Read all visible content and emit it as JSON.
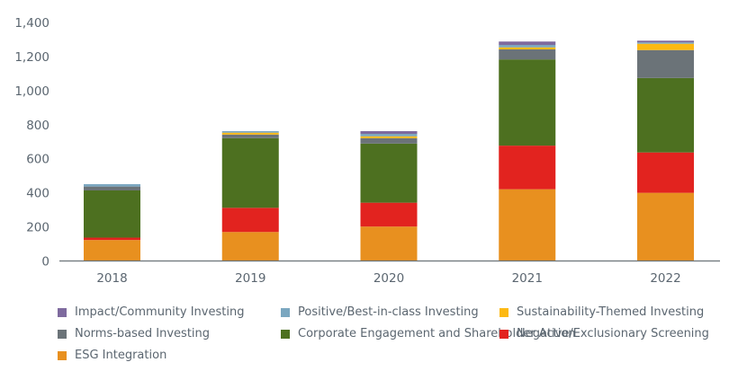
{
  "chart_data": {
    "type": "bar",
    "stacked": true,
    "title": "",
    "xlabel": "",
    "ylabel": "",
    "categories": [
      "2018",
      "2019",
      "2020",
      "2021",
      "2022"
    ],
    "ylim": [
      0,
      1400
    ],
    "yticks": [
      0,
      200,
      400,
      600,
      800,
      1000,
      1200,
      1400
    ],
    "ytick_labels": [
      "0",
      "200",
      "400",
      "600",
      "800",
      "1,000",
      "1,200",
      "1,400"
    ],
    "grid": false,
    "legend_position": "bottom",
    "series": [
      {
        "name": "ESG Integration",
        "color": "#E8901F",
        "values": [
          123,
          170,
          202,
          421,
          400
        ]
      },
      {
        "name": "Negative/Exclusionary Screening",
        "color": "#E2231F",
        "values": [
          14,
          142,
          140,
          256,
          237
        ]
      },
      {
        "name": "Corporate Engagement and Shareholder Action",
        "color": "#4D7020",
        "values": [
          277,
          409,
          347,
          506,
          437
        ]
      },
      {
        "name": "Norms-based Investing",
        "color": "#6B7378",
        "values": [
          23,
          21,
          32,
          59,
          164
        ]
      },
      {
        "name": "Sustainability-Themed Investing",
        "color": "#FDB913",
        "values": [
          0,
          11,
          11,
          12,
          37
        ]
      },
      {
        "name": "Positive/Best-in-class Investing",
        "color": "#7BA7C0",
        "values": [
          14,
          9,
          14,
          14,
          8
        ]
      },
      {
        "name": "Impact/Community Investing",
        "color": "#7E6A9E",
        "values": [
          0,
          0,
          16,
          20,
          10
        ]
      }
    ],
    "legend_order": [
      "Impact/Community Investing",
      "Positive/Best-in-class Investing",
      "Sustainability-Themed Investing",
      "Norms-based Investing",
      "Corporate Engagement and Shareholder Action",
      "Negative/Exclusionary Screening",
      "ESG Integration"
    ]
  }
}
